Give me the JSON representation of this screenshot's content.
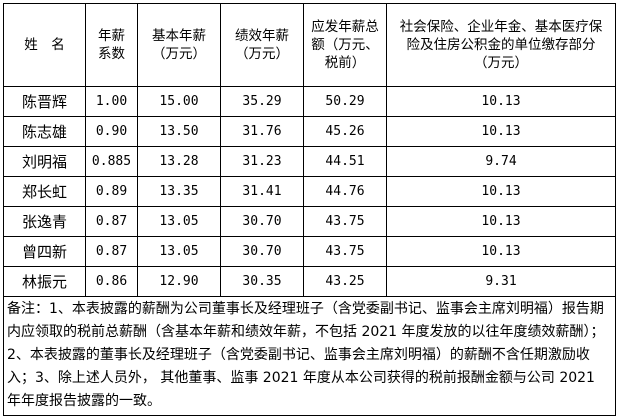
{
  "headers": [
    "姓　名",
    "年薪系数",
    "基本年薪（万元）",
    "绩效年薪（万元）",
    "应发年薪总额（万元、税前）",
    "社会保险、企业年金、基本医疗保险及住房公积金的单位缴存部分（万元）"
  ],
  "rows": [
    [
      "陈晋辉",
      "1.00",
      "15.00",
      "35.29",
      "50.29",
      "10.13"
    ],
    [
      "陈志雄",
      "0.90",
      "13.50",
      "31.76",
      "45.26",
      "10.13"
    ],
    [
      "刘明福",
      "0.885",
      "13.28",
      "31.23",
      "44.51",
      "9.74"
    ],
    [
      "郑长虹",
      "0.89",
      "13.35",
      "31.41",
      "44.76",
      "10.13"
    ],
    [
      "张逸青",
      "0.87",
      "13.05",
      "30.70",
      "43.75",
      "10.13"
    ],
    [
      "曾四新",
      "0.87",
      "13.05",
      "30.70",
      "43.75",
      "10.13"
    ],
    [
      "林振元",
      "0.86",
      "12.90",
      "30.35",
      "43.25",
      "9.31"
    ]
  ],
  "note": "备注：1、本表披露的薪酬为公司董事长及经理班子（含党委副书记、监事会主席刘明福）报告期内应领取的税前总薪酬（含基本年薪和绩效年薪，不包括 2021 年度发放的以往年度绩效薪酬）；2、本表披露的董事长及经理班子（含党委副书记、监事会主席刘明福）的薪酬不含任期激励收入；3、除上述人员外， 其他董事、监事 2021 年度从本公司获得的税前报酬金额与公司 2021 年年度报告披露的一致。"
}
